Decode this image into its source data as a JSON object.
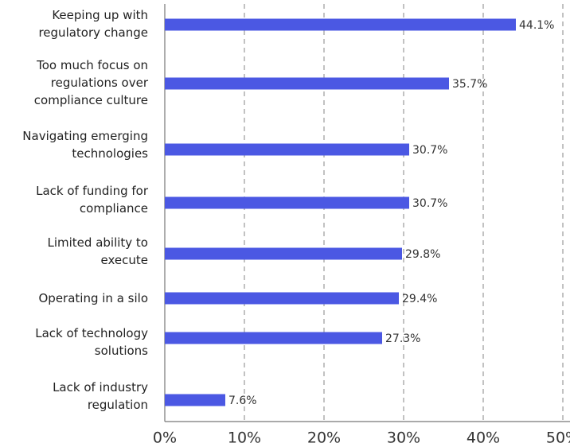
{
  "chart_data": {
    "type": "barh",
    "categories": [
      "Keeping up with\nregulatory change",
      "Too much focus on\nregulations over\ncompliance culture",
      "Navigating emerging\ntechnologies",
      "Lack of funding for\ncompliance",
      "Limited ability to\nexecute",
      "Operating in a silo",
      "Lack of technology\nsolutions",
      "Lack of industry\nregulation"
    ],
    "values": [
      44.1,
      35.7,
      30.7,
      30.7,
      29.8,
      29.4,
      27.3,
      7.6
    ],
    "value_labels": [
      "44.1%",
      "35.7%",
      "30.7%",
      "30.7%",
      "29.8%",
      "29.4%",
      "27.3%",
      "7.6%"
    ],
    "color": "#4b58e3",
    "xlim": [
      0,
      50
    ],
    "xticks": [
      {
        "value": 0,
        "label": "0%"
      },
      {
        "value": 10,
        "label": "10%"
      },
      {
        "value": 20,
        "label": "20%"
      },
      {
        "value": 30,
        "label": "30%"
      },
      {
        "value": 40,
        "label": "40%"
      },
      {
        "value": 50,
        "label": "50%"
      }
    ],
    "grid": true
  }
}
